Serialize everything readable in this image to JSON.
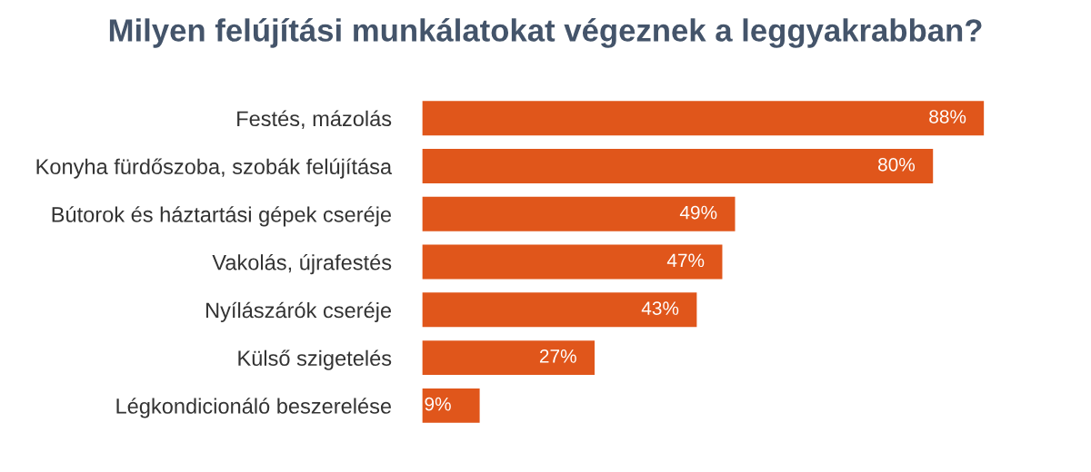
{
  "chart_data": {
    "type": "bar",
    "orientation": "horizontal",
    "title": "Milyen felújítási munkálatokat végeznek a leggyakrabban?",
    "categories": [
      "Festés, mázolás",
      "Konyha fürdőszoba, szobák felújítása",
      "Bútorok és háztartási gépek cseréje",
      "Vakolás, újrafestés",
      "Nyílászárók cseréje",
      "Külső szigetelés",
      "Légkondicionáló beszerelése"
    ],
    "values": [
      88,
      80,
      49,
      47,
      43,
      27,
      9
    ],
    "value_labels": [
      "88%",
      "80%",
      "49%",
      "47%",
      "43%",
      "27%",
      "9%"
    ],
    "color": "#e0561b",
    "grid": false,
    "legend": false
  }
}
